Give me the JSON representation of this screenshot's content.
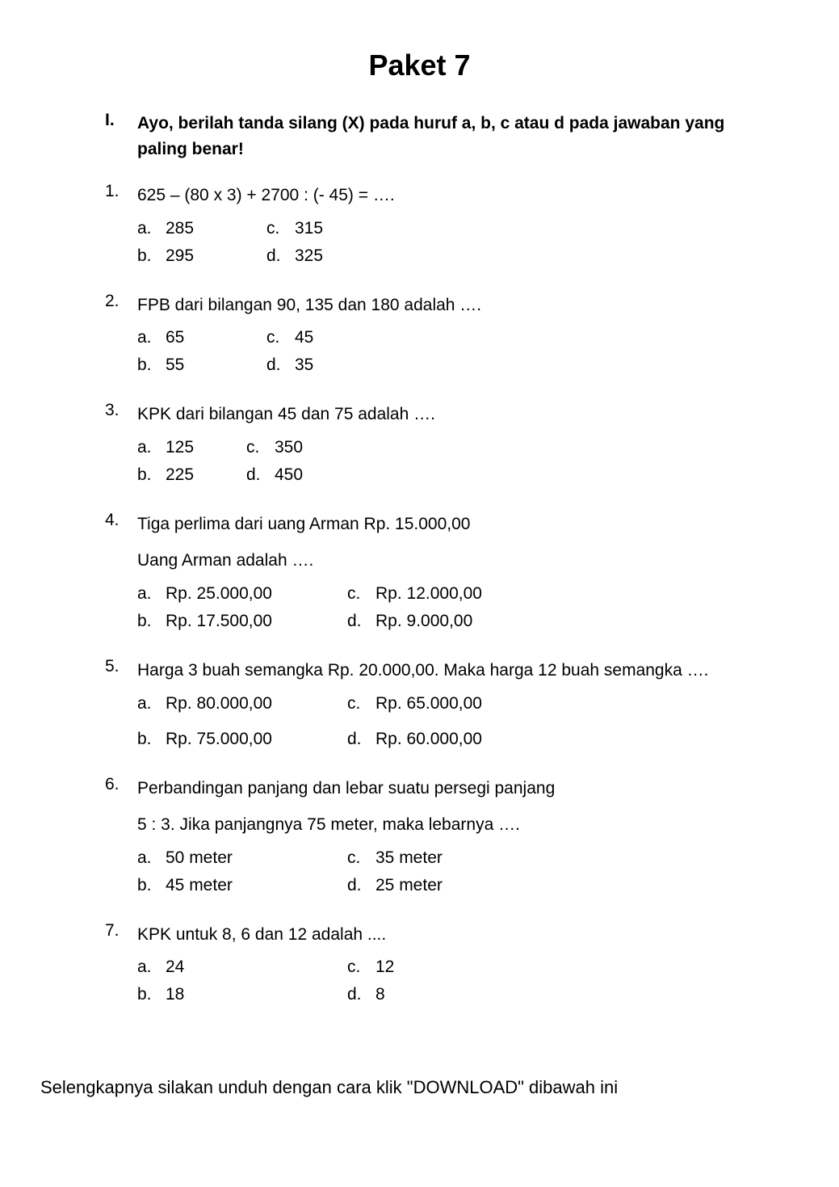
{
  "title": "Paket 7",
  "section": {
    "number": "I.",
    "instruction": "Ayo, berilah tanda silang (X) pada huruf a, b, c atau d pada jawaban yang paling benar!"
  },
  "questions": [
    {
      "num": "1.",
      "text": "625 – (80 x 3) + 2700 : (- 45)  =  ….",
      "options": {
        "a": "285",
        "b": "295",
        "c": "315",
        "d": "325"
      },
      "col_style": "narrow"
    },
    {
      "num": "2.",
      "text": "FPB dari bilangan 90, 135 dan 180 adalah  ….",
      "options": {
        "a": "65",
        "b": "55",
        "c": "45",
        "d": "35"
      },
      "col_style": "narrow"
    },
    {
      "num": "3.",
      "text": "KPK dari bilangan 45 dan 75 adalah  ….",
      "options": {
        "a": "125",
        "b": "225",
        "c": "350",
        "d": "450"
      },
      "col_style": "mid"
    },
    {
      "num": "4.",
      "text": "Tiga perlima dari uang Arman Rp. 15.000,00",
      "text2": "Uang Arman adalah  ….",
      "options": {
        "a": "Rp. 25.000,00",
        "b": "Rp. 17.500,00",
        "c": "Rp. 12.000,00",
        "d": "Rp. 9.000,00"
      },
      "col_style": "wide"
    },
    {
      "num": "5.",
      "text": "Harga 3 buah semangka Rp. 20.000,00. Maka harga 12 buah semangka  ….",
      "justify": true,
      "options": {
        "a": "Rp. 80.000,00",
        "b": "Rp. 75.000,00",
        "c": "Rp. 65.000,00",
        "d": "Rp. 60.000,00"
      },
      "col_style": "wide",
      "extra_row_gap": true
    },
    {
      "num": "6.",
      "text": "Perbandingan panjang dan lebar suatu persegi panjang",
      "text2": "5 : 3. Jika panjangnya 75 meter, maka lebarnya  ….",
      "text2_nomargin": true,
      "options": {
        "a": "50 meter",
        "b": "45 meter",
        "c": "35 meter",
        "d": "25 meter"
      },
      "col_style": "wide"
    },
    {
      "num": "7.",
      "text": "KPK untuk 8, 6 dan 12 adalah ....",
      "options": {
        "a": "24",
        "b": "18",
        "c": "12",
        "d": "8"
      },
      "col_style": "wide"
    }
  ],
  "footer": "Selengkapnya silakan unduh dengan cara klik \"DOWNLOAD\" dibawah ini"
}
